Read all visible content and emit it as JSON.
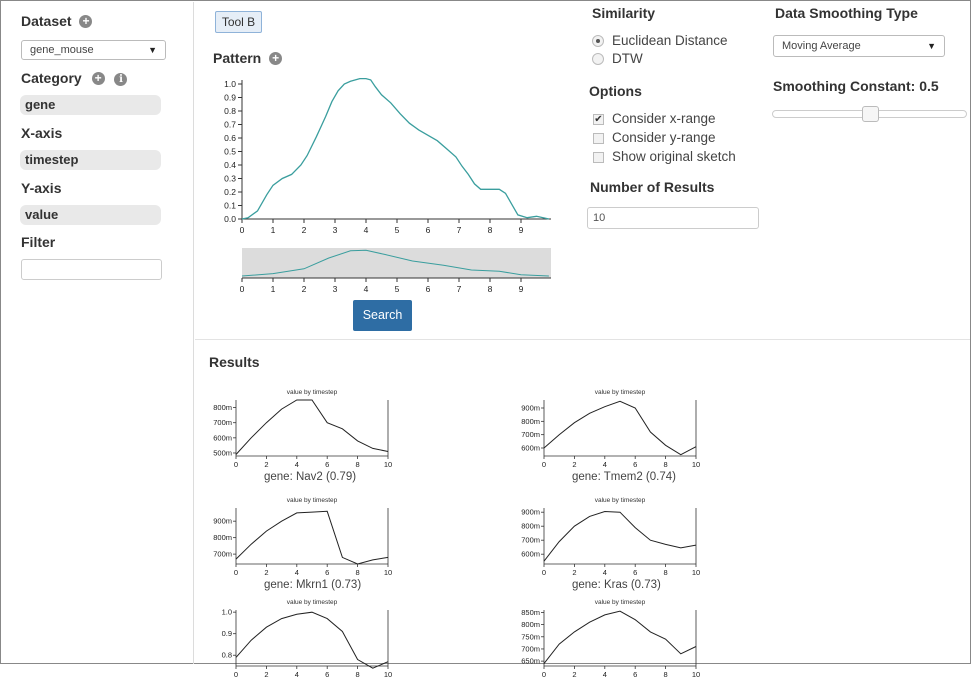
{
  "sidebar": {
    "dataset_label": "Dataset",
    "dataset_value": "gene_mouse",
    "category_label": "Category",
    "category_value": "gene",
    "xaxis_label": "X-axis",
    "xaxis_value": "timestep",
    "yaxis_label": "Y-axis",
    "yaxis_value": "value",
    "filter_label": "Filter",
    "filter_value": ""
  },
  "toolbar": {
    "tool_label": "Tool B"
  },
  "pattern": {
    "title": "Pattern",
    "y_ticks": [
      "0.0",
      "0.1",
      "0.2",
      "0.3",
      "0.4",
      "0.5",
      "0.6",
      "0.7",
      "0.8",
      "0.9",
      "1.0"
    ],
    "x_ticks": [
      "0",
      "1",
      "2",
      "3",
      "4",
      "5",
      "6",
      "7",
      "8",
      "9"
    ],
    "search_label": "Search"
  },
  "similarity": {
    "title": "Similarity",
    "options": [
      {
        "label": "Euclidean Distance",
        "selected": true
      },
      {
        "label": "DTW",
        "selected": false
      }
    ]
  },
  "options": {
    "title": "Options",
    "items": [
      {
        "label": "Consider x-range",
        "checked": true
      },
      {
        "label": "Consider y-range",
        "checked": false
      },
      {
        "label": "Show original sketch",
        "checked": false
      }
    ]
  },
  "results_count": {
    "title": "Number of Results",
    "value": "10"
  },
  "smoothing": {
    "type_title": "Data Smoothing Type",
    "type_value": "Moving Average",
    "constant_label": "Smoothing Constant:",
    "constant_value": "0.5",
    "slider_fraction": 0.5
  },
  "results": {
    "title": "Results",
    "x_ticks": [
      "0",
      "2",
      "4",
      "6",
      "8",
      "10"
    ],
    "cards": [
      {
        "subtitle": "value by timestep",
        "label": "gene: Nav2 (0.79)",
        "y_ticks": [
          "500m",
          "600m",
          "700m",
          "800m"
        ],
        "y_range": [
          480,
          850
        ],
        "values": [
          490,
          600,
          700,
          790,
          850,
          850,
          700,
          660,
          580,
          530,
          510
        ]
      },
      {
        "subtitle": "value by timestep",
        "label": "gene: Tmem2 (0.74)",
        "y_ticks": [
          "600m",
          "700m",
          "800m",
          "900m"
        ],
        "y_range": [
          540,
          960
        ],
        "values": [
          600,
          700,
          790,
          860,
          910,
          950,
          900,
          720,
          620,
          550,
          610
        ]
      },
      {
        "subtitle": "value by timestep",
        "label": "gene: Mkrn1 (0.73)",
        "y_ticks": [
          "700m",
          "800m",
          "900m"
        ],
        "y_range": [
          640,
          980
        ],
        "values": [
          670,
          760,
          840,
          900,
          950,
          955,
          960,
          680,
          640,
          665,
          680
        ]
      },
      {
        "subtitle": "value by timestep",
        "label": "gene: Kras (0.73)",
        "y_ticks": [
          "600m",
          "700m",
          "800m",
          "900m"
        ],
        "y_range": [
          530,
          930
        ],
        "values": [
          550,
          690,
          800,
          870,
          905,
          900,
          790,
          700,
          670,
          645,
          665
        ]
      },
      {
        "subtitle": "value by timestep",
        "label": "",
        "y_ticks": [
          "0.8",
          "0.9",
          "1.0"
        ],
        "y_range": [
          0.75,
          1.01
        ],
        "values": [
          0.79,
          0.87,
          0.93,
          0.97,
          0.99,
          1.0,
          0.97,
          0.91,
          0.78,
          0.74,
          0.77
        ]
      },
      {
        "subtitle": "value by timestep",
        "label": "",
        "y_ticks": [
          "650m",
          "700m",
          "750m",
          "800m",
          "850m"
        ],
        "y_range": [
          630,
          860
        ],
        "values": [
          640,
          720,
          770,
          810,
          840,
          855,
          820,
          770,
          740,
          680,
          710
        ]
      }
    ]
  },
  "colors": {
    "pattern_line": "#3a9e9e",
    "search_button": "#2e6da4",
    "minimap_bg": "#dcdcdc"
  }
}
